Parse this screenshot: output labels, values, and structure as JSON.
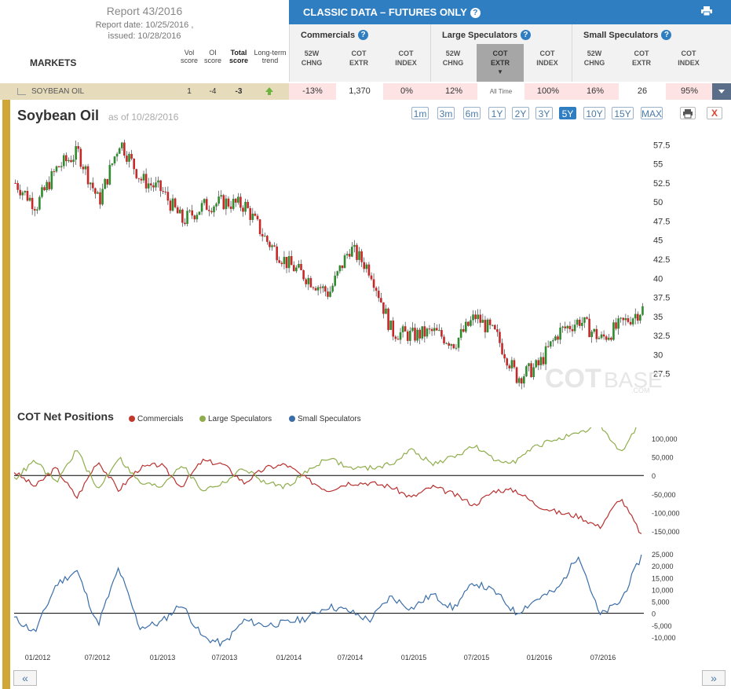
{
  "report": {
    "title": "Report 43/2016",
    "date_line": "Report date: 10/25/2016 ,",
    "issued_line": "issued: 10/28/2016"
  },
  "markets_label": "MARKETS",
  "columns": {
    "vol": [
      "Vol",
      "score"
    ],
    "oi": [
      "OI",
      "score"
    ],
    "total": [
      "Total",
      "score"
    ],
    "trend": [
      "Long-term",
      "trend"
    ]
  },
  "banner": {
    "title": "CLASSIC DATA – FUTURES ONLY",
    "help": "?"
  },
  "groups": [
    {
      "label": "Commercials",
      "subs": [
        [
          "52W",
          "CHNG"
        ],
        [
          "COT",
          "EXTR"
        ],
        [
          "COT",
          "INDEX"
        ]
      ]
    },
    {
      "label": "Large Speculators",
      "subs": [
        [
          "52W",
          "CHNG"
        ],
        [
          "COT",
          "EXTR"
        ],
        [
          "COT",
          "INDEX"
        ]
      ]
    },
    {
      "label": "Small Speculators",
      "subs": [
        [
          "52W",
          "CHNG"
        ],
        [
          "COT",
          "EXTR"
        ],
        [
          "COT",
          "INDEX"
        ]
      ]
    }
  ],
  "row": {
    "market": "SOYBEAN OIL",
    "vol": "1",
    "oi": "-4",
    "total": "-3",
    "values": [
      "-13%",
      "1,370",
      "0%",
      "12%",
      "All Time",
      "100%",
      "16%",
      "26",
      "95%"
    ]
  },
  "chart": {
    "title": "Soybean Oil",
    "asof": "as of 10/28/2016",
    "ranges": [
      "1m",
      "3m",
      "6m",
      "1Y",
      "2Y",
      "3Y",
      "5Y",
      "10Y",
      "15Y",
      "MAX"
    ],
    "active_range": "5Y",
    "close_label": "X",
    "watermark": [
      "COT",
      "BASE",
      ".COM"
    ]
  },
  "cot": {
    "title": "COT Net Positions",
    "legend": [
      {
        "name": "Commercials",
        "color": "#c0392b"
      },
      {
        "name": "Large Speculators",
        "color": "#8fad4c"
      },
      {
        "name": "Small Speculators",
        "color": "#3b6ea8"
      }
    ]
  },
  "nav": {
    "prev": "«",
    "next": "»"
  },
  "chart_data": [
    {
      "type": "candlestick",
      "title": "Soybean Oil",
      "ylim": [
        25,
        60
      ],
      "yticks": [
        27.5,
        30,
        32.5,
        35,
        37.5,
        40,
        42.5,
        45,
        47.5,
        50,
        52.5,
        55,
        57.5
      ],
      "x_labels": [
        "01/2012",
        "07/2012",
        "01/2013",
        "07/2013",
        "01/2014",
        "07/2014",
        "01/2015",
        "07/2015",
        "01/2016",
        "07/2016"
      ],
      "x": [
        "2011-10",
        "2012-01",
        "2012-03",
        "2012-05",
        "2012-07",
        "2012-09",
        "2012-11",
        "2013-01",
        "2013-03",
        "2013-05",
        "2013-07",
        "2013-09",
        "2013-11",
        "2014-01",
        "2014-03",
        "2014-05",
        "2014-07",
        "2014-09",
        "2014-11",
        "2015-01",
        "2015-03",
        "2015-05",
        "2015-07",
        "2015-09",
        "2015-11",
        "2016-01",
        "2016-03",
        "2016-05",
        "2016-07",
        "2016-09",
        "2016-10"
      ],
      "close": [
        52.5,
        49.5,
        54.5,
        56.5,
        50,
        58,
        53,
        51.5,
        47.5,
        49.5,
        50,
        49.5,
        45,
        42,
        40,
        38,
        44,
        41,
        33,
        32.5,
        33,
        31.5,
        35,
        32.5,
        27,
        28.5,
        33,
        34.5,
        32,
        34,
        36
      ]
    },
    {
      "type": "line",
      "title": "COT Net Positions",
      "yticks": [
        -150000,
        -100000,
        -50000,
        0,
        50000,
        100000
      ],
      "series": [
        {
          "name": "Commercials",
          "values": [
            10000,
            -30000,
            20000,
            -60000,
            40000,
            -40000,
            20000,
            30000,
            -30000,
            40000,
            30000,
            -20000,
            20000,
            30000,
            -10000,
            -40000,
            -20000,
            -20000,
            -30000,
            -60000,
            -30000,
            -50000,
            -80000,
            -40000,
            -40000,
            -80000,
            -100000,
            -110000,
            -140000,
            -60000,
            -160000
          ]
        },
        {
          "name": "Large Speculators",
          "values": [
            -10000,
            40000,
            -20000,
            70000,
            -40000,
            50000,
            -20000,
            -30000,
            30000,
            -40000,
            -20000,
            20000,
            -20000,
            -30000,
            10000,
            50000,
            20000,
            20000,
            30000,
            70000,
            30000,
            50000,
            80000,
            40000,
            40000,
            80000,
            100000,
            110000,
            140000,
            60000,
            150000
          ]
        }
      ]
    },
    {
      "type": "line",
      "yticks": [
        -10000,
        -5000,
        0,
        5000,
        10000,
        15000,
        20000,
        25000
      ],
      "series": [
        {
          "name": "Small Speculators",
          "values": [
            -2000,
            -8000,
            12000,
            18000,
            -5000,
            19000,
            -6000,
            -4000,
            4000,
            -10000,
            -13000,
            -3000,
            -5000,
            -4000,
            -2000,
            3000,
            1000,
            -3000,
            7000,
            2000,
            8000,
            2000,
            13000,
            9000,
            0,
            6000,
            10000,
            25000,
            -1000,
            5000,
            24000
          ]
        }
      ]
    }
  ]
}
